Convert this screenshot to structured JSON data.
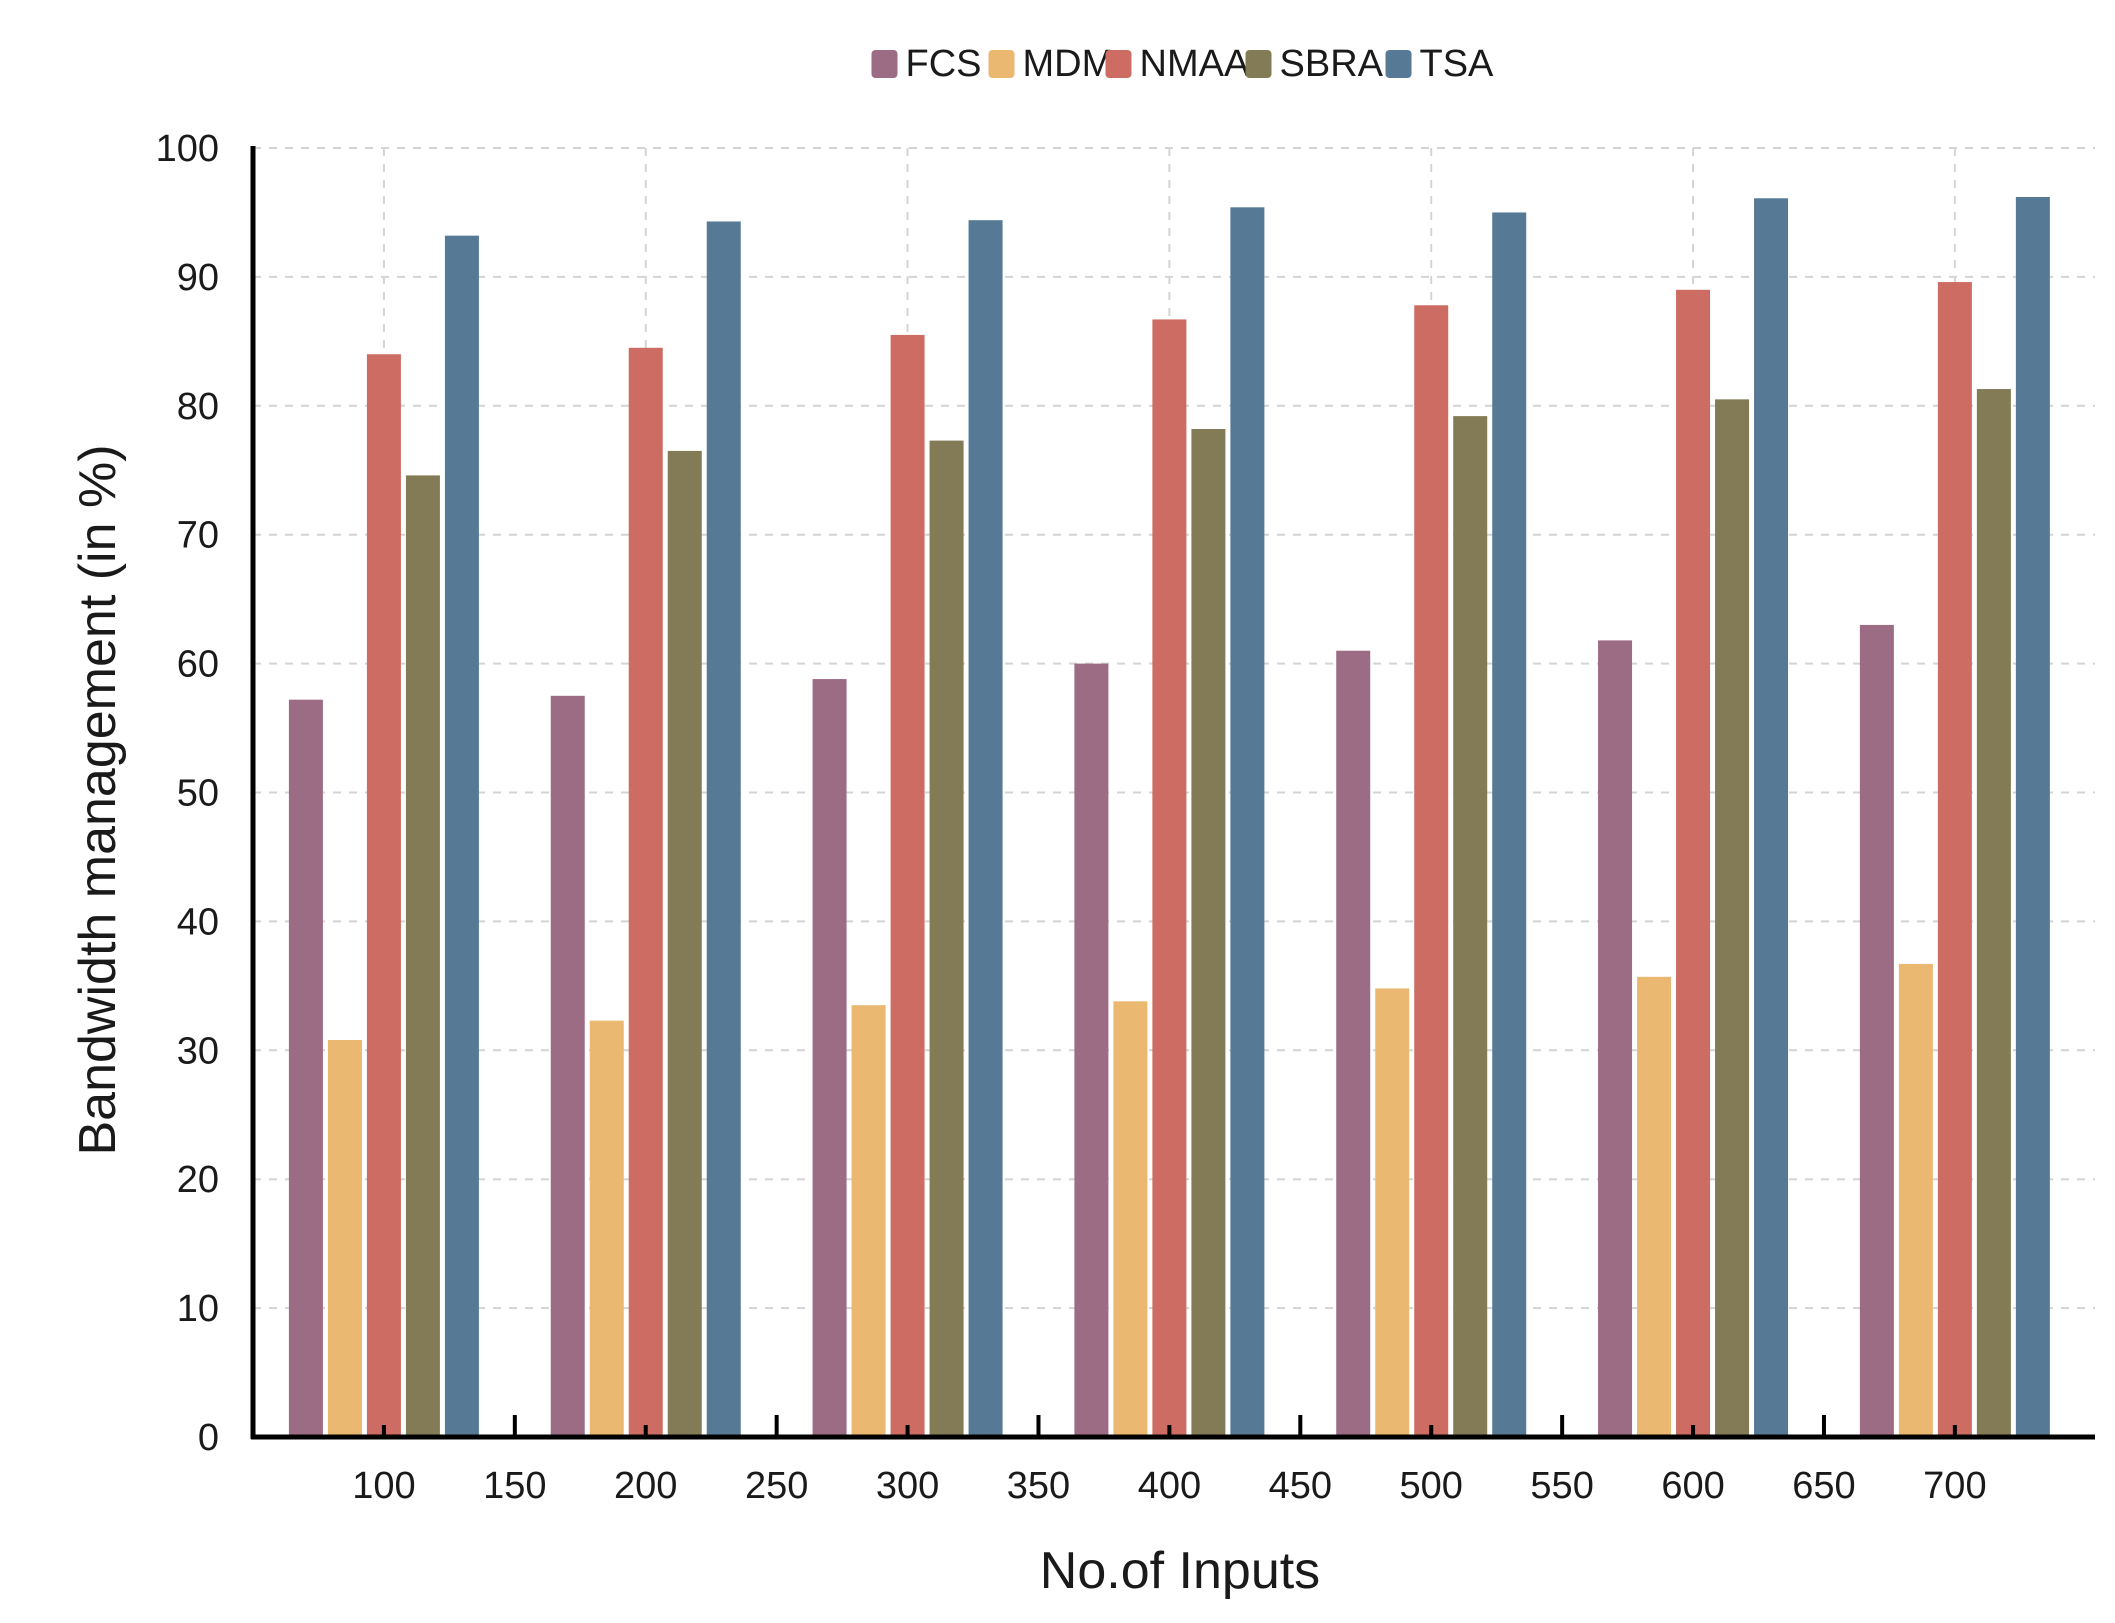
{
  "chart_data": {
    "type": "bar",
    "title": "",
    "xlabel": "No.of Inputs",
    "ylabel": "Bandwidth management (in %)",
    "ylim": [
      0,
      100
    ],
    "yticks": [
      "0",
      "10",
      "20",
      "30",
      "40",
      "50",
      "60",
      "70",
      "80",
      "90",
      "100"
    ],
    "xticks": [
      "100",
      "150",
      "200",
      "250",
      "300",
      "350",
      "400",
      "450",
      "500",
      "550",
      "600",
      "650",
      "700"
    ],
    "categories": [
      "100",
      "200",
      "300",
      "400",
      "500",
      "600",
      "700"
    ],
    "grid": true,
    "legend_position": "top-center",
    "series": [
      {
        "name": "FCS",
        "color": "#9c6b84",
        "values": [
          57.2,
          57.5,
          58.8,
          60.0,
          61.0,
          61.8,
          63.0
        ]
      },
      {
        "name": "MDM",
        "color": "#ebb872",
        "values": [
          30.8,
          32.3,
          33.5,
          33.8,
          34.8,
          35.7,
          36.7
        ]
      },
      {
        "name": "NMAA",
        "color": "#cc6c62",
        "values": [
          84.0,
          84.5,
          85.5,
          86.7,
          87.8,
          89.0,
          89.6
        ]
      },
      {
        "name": "SBRA",
        "color": "#827b55",
        "values": [
          74.6,
          76.5,
          77.3,
          78.2,
          79.2,
          80.5,
          81.3
        ]
      },
      {
        "name": "TSA",
        "color": "#567a96",
        "values": [
          93.2,
          94.3,
          94.4,
          95.4,
          95.0,
          96.1,
          96.2
        ]
      }
    ]
  }
}
